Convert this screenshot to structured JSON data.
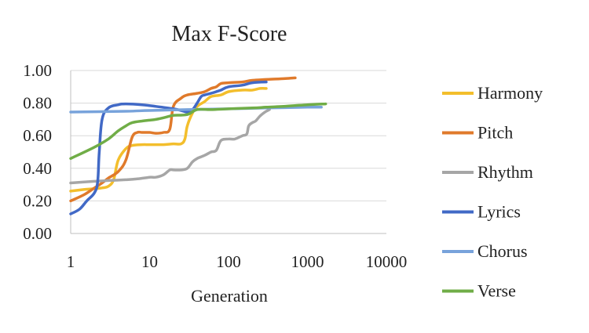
{
  "chart_data": {
    "type": "line",
    "title": "Max F-Score",
    "xlabel": "Generation",
    "ylabel": "",
    "x_scale": "log10",
    "xlim": [
      1,
      10000
    ],
    "ylim": [
      0,
      1
    ],
    "x_ticks": [
      1,
      10,
      100,
      1000,
      10000
    ],
    "x_tick_labels": [
      "1",
      "10",
      "100",
      "1000",
      "10000"
    ],
    "y_ticks": [
      0,
      0.2,
      0.4,
      0.6,
      0.8,
      1.0
    ],
    "y_tick_labels": [
      "0.00",
      "0.20",
      "0.40",
      "0.60",
      "0.80",
      "1.00"
    ],
    "grid": "horizontal",
    "legend_position": "right",
    "series": [
      {
        "name": "Harmony",
        "color": "#F3BE2C",
        "points": [
          [
            1,
            0.26
          ],
          [
            1.5,
            0.27
          ],
          [
            2,
            0.275
          ],
          [
            2.5,
            0.28
          ],
          [
            3,
            0.29
          ],
          [
            3.5,
            0.33
          ],
          [
            4,
            0.45
          ],
          [
            5,
            0.52
          ],
          [
            6,
            0.54
          ],
          [
            8,
            0.545
          ],
          [
            10,
            0.545
          ],
          [
            15,
            0.545
          ],
          [
            20,
            0.55
          ],
          [
            25,
            0.55
          ],
          [
            28,
            0.58
          ],
          [
            30,
            0.66
          ],
          [
            35,
            0.74
          ],
          [
            40,
            0.78
          ],
          [
            50,
            0.81
          ],
          [
            60,
            0.84
          ],
          [
            80,
            0.85
          ],
          [
            100,
            0.87
          ],
          [
            150,
            0.88
          ],
          [
            200,
            0.88
          ],
          [
            250,
            0.89
          ],
          [
            300,
            0.89
          ]
        ]
      },
      {
        "name": "Pitch",
        "color": "#E07A2B",
        "points": [
          [
            1,
            0.2
          ],
          [
            1.5,
            0.24
          ],
          [
            2,
            0.28
          ],
          [
            2.5,
            0.31
          ],
          [
            3,
            0.34
          ],
          [
            4,
            0.38
          ],
          [
            5,
            0.45
          ],
          [
            6,
            0.59
          ],
          [
            7,
            0.62
          ],
          [
            8,
            0.62
          ],
          [
            10,
            0.62
          ],
          [
            12,
            0.615
          ],
          [
            15,
            0.62
          ],
          [
            18,
            0.64
          ],
          [
            20,
            0.78
          ],
          [
            25,
            0.83
          ],
          [
            30,
            0.85
          ],
          [
            40,
            0.86
          ],
          [
            50,
            0.87
          ],
          [
            60,
            0.89
          ],
          [
            70,
            0.9
          ],
          [
            80,
            0.92
          ],
          [
            100,
            0.925
          ],
          [
            150,
            0.93
          ],
          [
            200,
            0.94
          ],
          [
            300,
            0.945
          ],
          [
            500,
            0.95
          ],
          [
            700,
            0.955
          ]
        ]
      },
      {
        "name": "Rhythm",
        "color": "#A6A6A6",
        "points": [
          [
            1,
            0.31
          ],
          [
            2,
            0.32
          ],
          [
            3,
            0.325
          ],
          [
            5,
            0.33
          ],
          [
            7,
            0.335
          ],
          [
            10,
            0.345
          ],
          [
            12,
            0.345
          ],
          [
            15,
            0.36
          ],
          [
            18,
            0.39
          ],
          [
            20,
            0.39
          ],
          [
            25,
            0.39
          ],
          [
            30,
            0.4
          ],
          [
            35,
            0.44
          ],
          [
            40,
            0.46
          ],
          [
            50,
            0.48
          ],
          [
            60,
            0.5
          ],
          [
            70,
            0.51
          ],
          [
            80,
            0.57
          ],
          [
            100,
            0.58
          ],
          [
            120,
            0.58
          ],
          [
            150,
            0.6
          ],
          [
            170,
            0.61
          ],
          [
            180,
            0.66
          ],
          [
            200,
            0.68
          ],
          [
            220,
            0.69
          ],
          [
            250,
            0.72
          ],
          [
            280,
            0.74
          ],
          [
            300,
            0.75
          ],
          [
            330,
            0.76
          ]
        ]
      },
      {
        "name": "Lyrics",
        "color": "#4169C6",
        "points": [
          [
            1,
            0.12
          ],
          [
            1.3,
            0.15
          ],
          [
            1.6,
            0.2
          ],
          [
            2,
            0.25
          ],
          [
            2.2,
            0.32
          ],
          [
            2.3,
            0.5
          ],
          [
            2.5,
            0.7
          ],
          [
            3,
            0.77
          ],
          [
            4,
            0.79
          ],
          [
            5,
            0.795
          ],
          [
            8,
            0.79
          ],
          [
            12,
            0.78
          ],
          [
            20,
            0.765
          ],
          [
            25,
            0.755
          ],
          [
            30,
            0.745
          ],
          [
            35,
            0.76
          ],
          [
            40,
            0.8
          ],
          [
            45,
            0.84
          ],
          [
            50,
            0.85
          ],
          [
            60,
            0.86
          ],
          [
            70,
            0.87
          ],
          [
            80,
            0.88
          ],
          [
            100,
            0.9
          ],
          [
            150,
            0.91
          ],
          [
            200,
            0.925
          ],
          [
            300,
            0.93
          ]
        ]
      },
      {
        "name": "Chorus",
        "color": "#78A3DB",
        "points": [
          [
            1,
            0.745
          ],
          [
            5,
            0.75
          ],
          [
            10,
            0.755
          ],
          [
            30,
            0.76
          ],
          [
            100,
            0.765
          ],
          [
            300,
            0.77
          ],
          [
            1000,
            0.775
          ],
          [
            1500,
            0.775
          ]
        ]
      },
      {
        "name": "Verse",
        "color": "#70AD47",
        "points": [
          [
            1,
            0.46
          ],
          [
            2,
            0.53
          ],
          [
            3,
            0.58
          ],
          [
            4,
            0.63
          ],
          [
            5,
            0.66
          ],
          [
            6,
            0.68
          ],
          [
            8,
            0.69
          ],
          [
            10,
            0.695
          ],
          [
            12,
            0.7
          ],
          [
            15,
            0.71
          ],
          [
            18,
            0.72
          ],
          [
            20,
            0.725
          ],
          [
            30,
            0.73
          ],
          [
            40,
            0.76
          ],
          [
            60,
            0.76
          ],
          [
            100,
            0.765
          ],
          [
            200,
            0.77
          ],
          [
            300,
            0.775
          ],
          [
            500,
            0.78
          ],
          [
            1000,
            0.79
          ],
          [
            1700,
            0.795
          ]
        ]
      }
    ]
  }
}
